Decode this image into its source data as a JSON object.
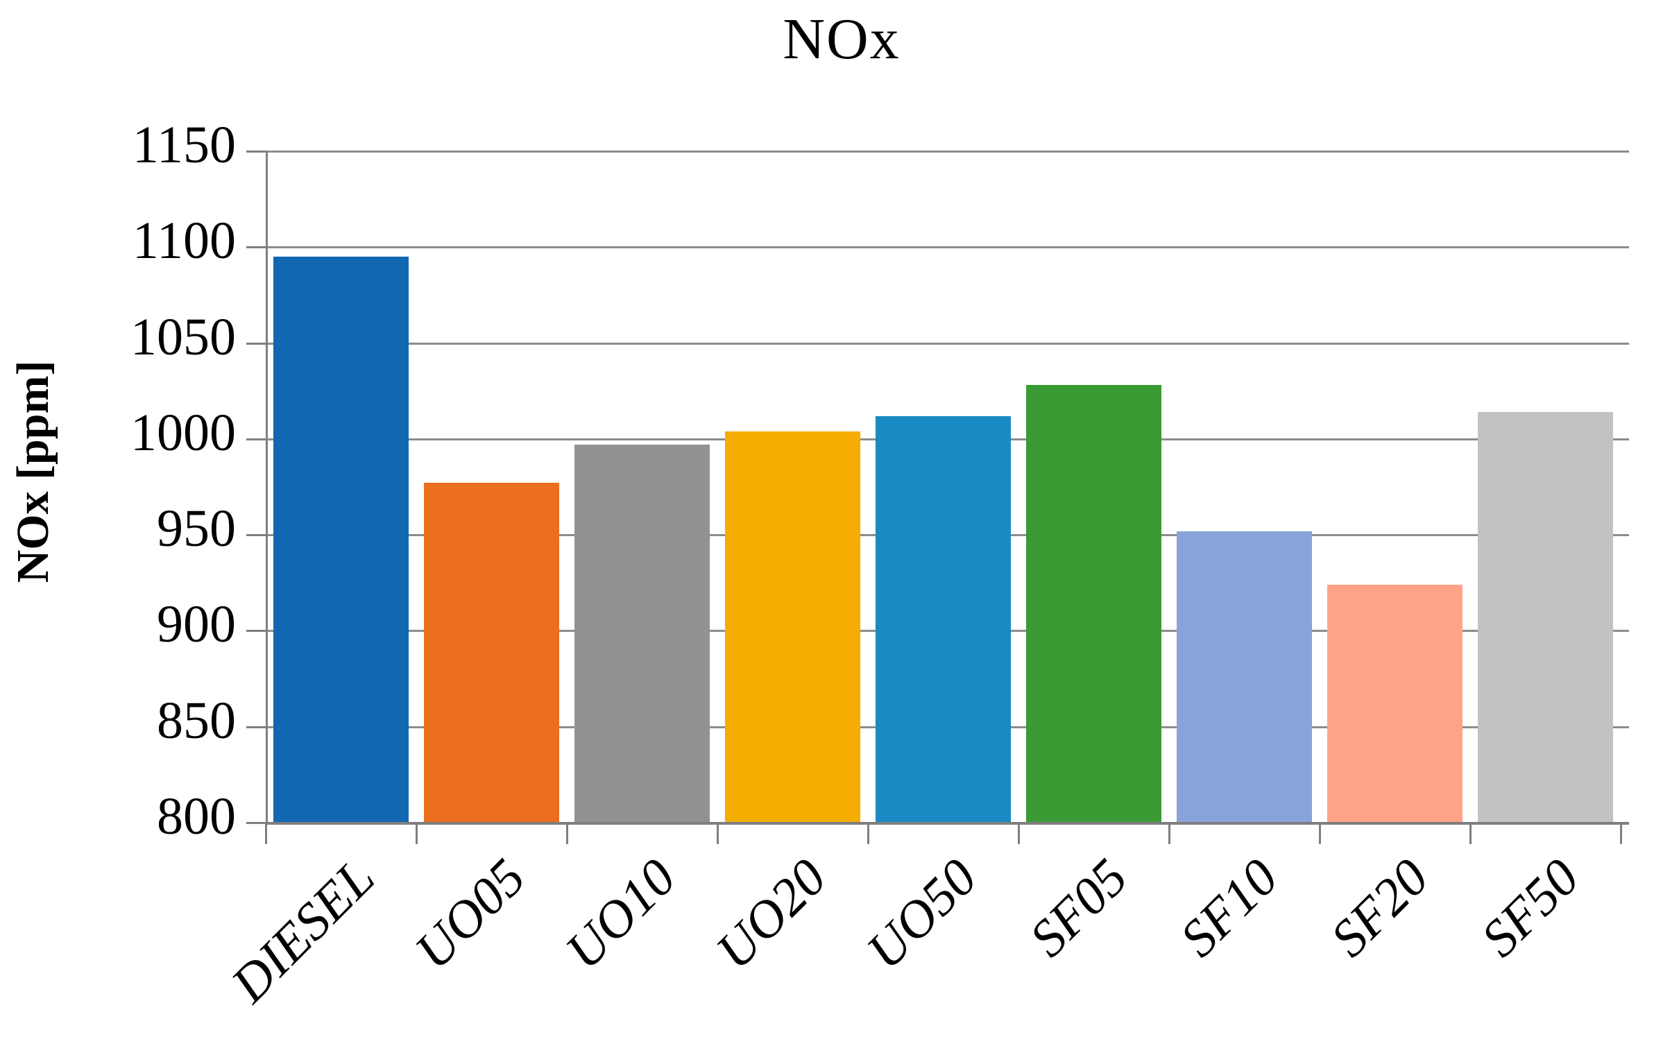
{
  "chart_data": {
    "type": "bar",
    "title": "NOx",
    "xlabel": "",
    "ylabel": "NOx [ppm]",
    "categories": [
      "DIESEL",
      "UO05",
      "UO10",
      "UO20",
      "UO50",
      "SF05",
      "SF10",
      "SF20",
      "SF50"
    ],
    "values": [
      1095,
      977,
      997,
      1004,
      1012,
      1028,
      952,
      924,
      1014
    ],
    "bar_colors": [
      "#1267B1",
      "#EC6E1F",
      "#929292",
      "#F4AD00",
      "#1A8AC2",
      "#3A9B35",
      "#88A3D9",
      "#FEA388",
      "#C2C2C2"
    ],
    "ylim": [
      800,
      1150
    ],
    "ytick_step": 50,
    "y_ticks": [
      1150,
      1100,
      1050,
      1000,
      950,
      900,
      850,
      800
    ],
    "grid": true,
    "legend_position": "none",
    "gridline_color": "#8C8C8C",
    "axis_color": "#7F7F7F",
    "text_color": "#000000"
  }
}
